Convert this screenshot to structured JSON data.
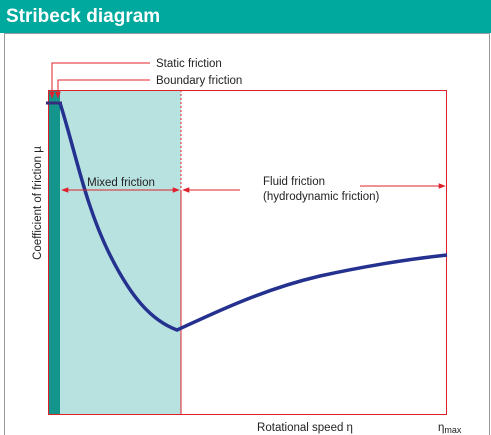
{
  "header": {
    "title": "Stribeck diagram"
  },
  "labels": {
    "static": "Static friction",
    "boundary": "Boundary friction",
    "y_axis": "Coefficient of friction µ",
    "mixed": "Mixed friction",
    "fluid": [
      "Fluid friction",
      "(hydrodynamic friction)"
    ],
    "x_axis": "Rotational speed η",
    "eta": "η",
    "eta_sub": "max"
  }
}
